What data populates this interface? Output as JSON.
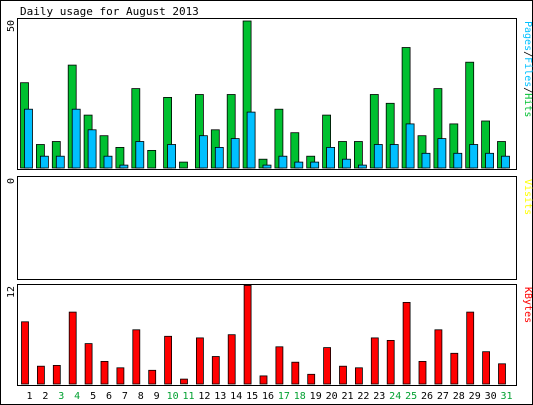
{
  "title": "Daily usage for August 2013",
  "colors": {
    "background": "#ffffff",
    "frame": "#000000",
    "hits": "#00c030",
    "files": "#00c0ff",
    "pages": "#00c0ff",
    "visits": "#ffff00",
    "kbytes": "#ff0000",
    "weekday_label": "#000000",
    "weekend_label": "#00a030"
  },
  "chart_data": [
    {
      "type": "bar",
      "panel": "hits-files-pages",
      "y_max_label": "50",
      "ylim": [
        0,
        50
      ],
      "legend_parts": [
        "Pages",
        "/",
        "Files",
        "/",
        "Hits"
      ],
      "categories": [
        "1",
        "2",
        "3",
        "4",
        "5",
        "6",
        "7",
        "8",
        "9",
        "10",
        "11",
        "12",
        "13",
        "14",
        "15",
        "16",
        "17",
        "18",
        "19",
        "20",
        "21",
        "22",
        "23",
        "24",
        "25",
        "26",
        "27",
        "28",
        "29",
        "30",
        "31"
      ],
      "weekend_days": [
        3,
        4,
        10,
        11,
        17,
        18,
        24,
        25,
        31
      ],
      "series": [
        {
          "name": "Hits",
          "values": [
            29,
            8,
            9,
            35,
            18,
            11,
            7,
            27,
            6,
            24,
            2,
            25,
            13,
            25,
            50,
            3,
            20,
            12,
            4,
            18,
            9,
            9,
            25,
            22,
            41,
            11,
            27,
            15,
            36,
            16,
            9
          ]
        },
        {
          "name": "Files",
          "values": [
            20,
            4,
            4,
            20,
            13,
            4,
            1,
            9,
            0,
            8,
            0,
            11,
            7,
            10,
            19,
            1,
            4,
            2,
            2,
            7,
            3,
            1,
            8,
            8,
            15,
            5,
            10,
            5,
            8,
            5,
            4
          ]
        }
      ]
    },
    {
      "type": "bar",
      "panel": "visits",
      "y_max_label": "0",
      "ylim": [
        0,
        1
      ],
      "legend_parts": [
        "Visits"
      ],
      "categories": [
        "1",
        "2",
        "3",
        "4",
        "5",
        "6",
        "7",
        "8",
        "9",
        "10",
        "11",
        "12",
        "13",
        "14",
        "15",
        "16",
        "17",
        "18",
        "19",
        "20",
        "21",
        "22",
        "23",
        "24",
        "25",
        "26",
        "27",
        "28",
        "29",
        "30",
        "31"
      ],
      "series": [
        {
          "name": "Visits",
          "values": [
            0,
            0,
            0,
            0,
            0,
            0,
            0,
            0,
            0,
            0,
            0,
            0,
            0,
            0,
            0,
            0,
            0,
            0,
            0,
            0,
            0,
            0,
            0,
            0,
            0,
            0,
            0,
            0,
            0,
            0,
            0
          ]
        }
      ]
    },
    {
      "type": "bar",
      "panel": "kbytes",
      "y_max_label": "12",
      "ylim": [
        0,
        12
      ],
      "legend_parts": [
        "KBytes"
      ],
      "categories": [
        "1",
        "2",
        "3",
        "4",
        "5",
        "6",
        "7",
        "8",
        "9",
        "10",
        "11",
        "12",
        "13",
        "14",
        "15",
        "16",
        "17",
        "18",
        "19",
        "20",
        "21",
        "22",
        "23",
        "24",
        "25",
        "26",
        "27",
        "28",
        "29",
        "30",
        "31"
      ],
      "series": [
        {
          "name": "KBytes",
          "values": [
            7.7,
            2.2,
            2.3,
            8.9,
            5.0,
            2.8,
            2.0,
            6.7,
            1.7,
            5.9,
            0.6,
            5.7,
            3.4,
            6.1,
            12.2,
            1.0,
            4.6,
            2.7,
            1.2,
            4.5,
            2.2,
            2.0,
            5.7,
            5.4,
            10.1,
            2.8,
            6.7,
            3.8,
            8.9,
            4.0,
            2.5
          ]
        }
      ]
    }
  ]
}
